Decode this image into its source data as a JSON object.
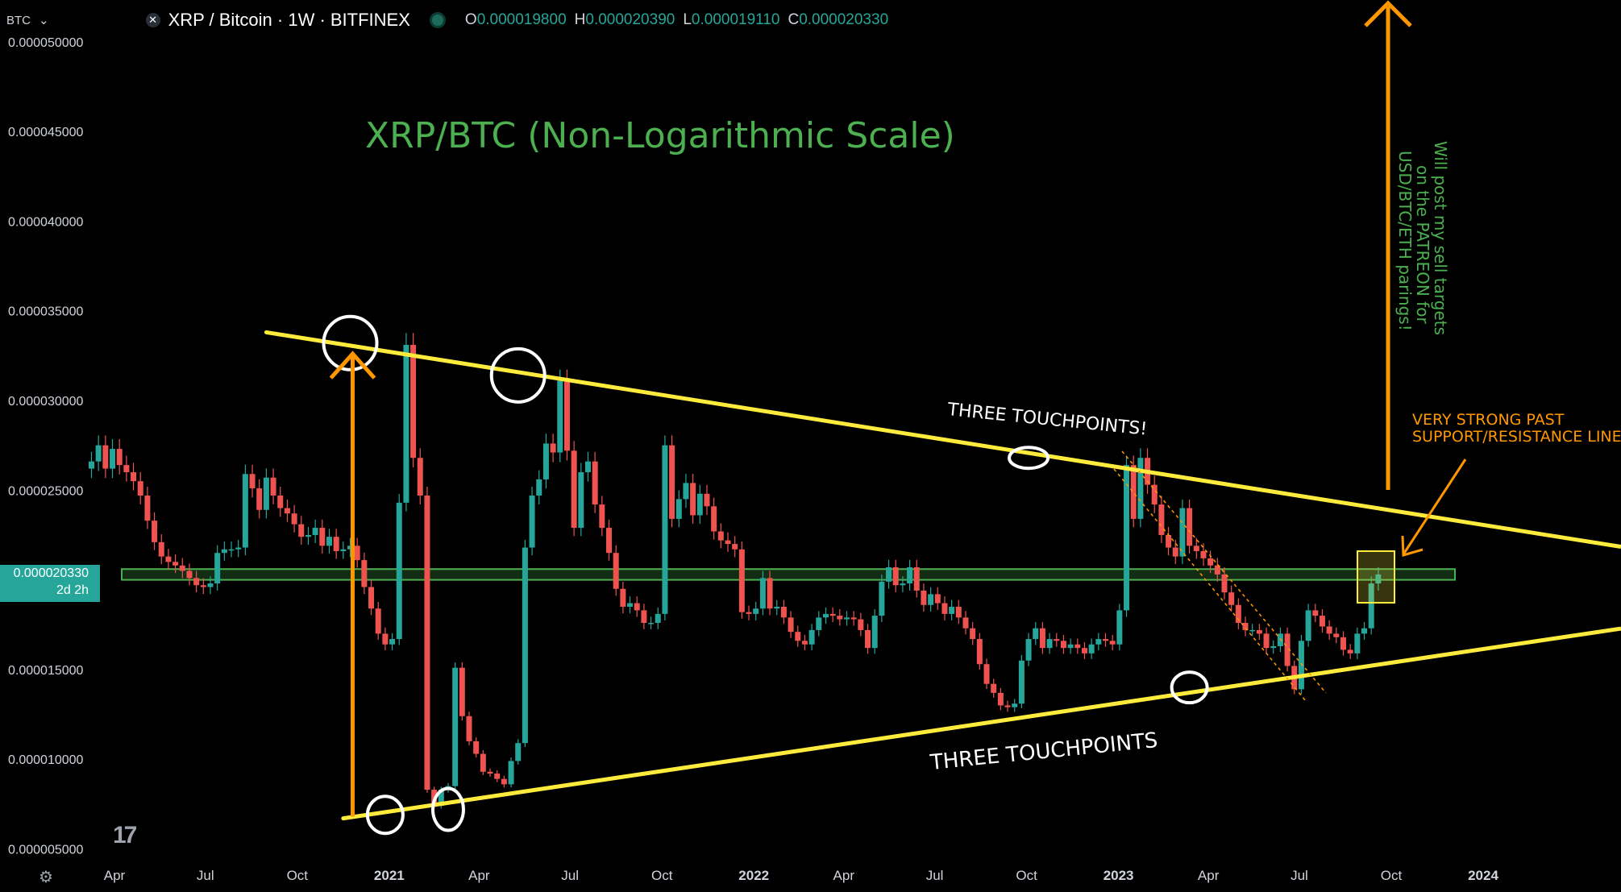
{
  "header": {
    "unit": "BTC",
    "symbol_title": "XRP / Bitcoin · 1W · BITFINEX",
    "ohlc": [
      {
        "k": "O",
        "v": "0.000019800"
      },
      {
        "k": "H",
        "v": "0.000020390"
      },
      {
        "k": "L",
        "v": "0.000019110"
      },
      {
        "k": "C",
        "v": "0.000020330"
      }
    ]
  },
  "price_tag": {
    "value": "0.000020330",
    "countdown": "2d 2h"
  },
  "annotations": {
    "title": "XRP/BTC (Non-Logarithmic Scale)",
    "upper_label": "THREE TOUCHPOINTS!",
    "lower_label": "THREE TOUCHPOINTS",
    "resistance_label_1": "VERY STRONG PAST",
    "resistance_label_2": "SUPPORT/RESISTANCE LINE!",
    "patreon_lines": [
      "Will post my sell targets",
      "on the PATREON for",
      "USD/BTC/ETH parings!"
    ]
  },
  "colors": {
    "bull": "#26a69a",
    "bear": "#ef5350",
    "trendline": "#ffeb3b",
    "arrow": "#ff9800",
    "zone": "#4caf50",
    "annotation_green": "#4caf50",
    "annotation_orange": "#ff9800"
  },
  "chart_data": {
    "type": "candlestick",
    "title": "XRP/BTC (Non-Logarithmic Scale)",
    "y_axis": {
      "ticks": [
        5e-06,
        1e-05,
        1.5e-05,
        2e-05,
        2.5e-05,
        3e-05,
        3.5e-05,
        4e-05,
        4.5e-05,
        5e-05
      ],
      "tick_labels": [
        "0.000005000",
        "0.000010000",
        "0.000015000",
        "",
        "0.000025000",
        "0.000030000",
        "0.000035000",
        "0.000040000",
        "0.000045000",
        "0.000050000"
      ],
      "range": [
        4.8e-06,
        5.11e-05
      ]
    },
    "x_axis": {
      "tick_labels": [
        "Apr",
        "Jul",
        "Oct",
        "2021",
        "Apr",
        "Jul",
        "Oct",
        "2022",
        "Apr",
        "Jul",
        "Oct",
        "2023",
        "Apr",
        "Jul",
        "Oct",
        "2024"
      ],
      "tick_dates": [
        "2020-04-01",
        "2020-07-01",
        "2020-10-01",
        "2021-01-01",
        "2021-04-01",
        "2021-07-01",
        "2021-10-01",
        "2022-01-01",
        "2022-04-01",
        "2022-07-01",
        "2022-10-01",
        "2023-01-01",
        "2023-04-01",
        "2023-07-01",
        "2023-10-01",
        "2024-01-01"
      ]
    },
    "first_week": "2020-03-09",
    "closes": [
      2.66e-05,
      2.75e-05,
      2.62e-05,
      2.73e-05,
      2.64e-05,
      2.6e-05,
      2.55e-05,
      2.47e-05,
      2.33e-05,
      2.21e-05,
      2.13e-05,
      2.1e-05,
      2.08e-05,
      2.05e-05,
      2.01e-05,
      1.97e-05,
      1.96e-05,
      1.98e-05,
      2.15e-05,
      2.17e-05,
      2.17e-05,
      2.18e-05,
      2.59e-05,
      2.51e-05,
      2.39e-05,
      2.57e-05,
      2.47e-05,
      2.4e-05,
      2.37e-05,
      2.31e-05,
      2.24e-05,
      2.25e-05,
      2.29e-05,
      2.19e-05,
      2.24e-05,
      2.16e-05,
      2.17e-05,
      2.19e-05,
      2.11e-05,
      1.96e-05,
      1.84e-05,
      1.7e-05,
      1.64e-05,
      1.67e-05,
      2.43e-05,
      3.31e-05,
      2.68e-05,
      2.47e-05,
      8.3e-06,
      7.4e-06,
      8.3e-06,
      8.5e-06,
      1.51e-05,
      1.24e-05,
      1.1e-05,
      1.03e-05,
      9.3e-06,
      9.2e-06,
      8.9e-06,
      8.6e-06,
      9.9e-06,
      1.09e-05,
      2.18e-05,
      2.47e-05,
      2.56e-05,
      2.76e-05,
      2.71e-05,
      3.11e-05,
      2.72e-05,
      2.29e-05,
      2.6e-05,
      2.66e-05,
      2.42e-05,
      2.29e-05,
      2.15e-05,
      1.95e-05,
      1.85e-05,
      1.87e-05,
      1.83e-05,
      1.76e-05,
      1.76e-05,
      1.81e-05,
      2.75e-05,
      2.34e-05,
      2.45e-05,
      2.54e-05,
      2.36e-05,
      2.48e-05,
      2.41e-05,
      2.27e-05,
      2.22e-05,
      2.2e-05,
      2.17e-05,
      1.82e-05,
      1.81e-05,
      1.84e-05,
      2.01e-05,
      1.84e-05,
      1.85e-05,
      1.79e-05,
      1.71e-05,
      1.66e-05,
      1.64e-05,
      1.72e-05,
      1.79e-05,
      1.81e-05,
      1.8e-05,
      1.78e-05,
      1.79e-05,
      1.78e-05,
      1.72e-05,
      1.62e-05,
      1.8e-05,
      1.99e-05,
      2.07e-05,
      1.97e-05,
      1.98e-05,
      2.07e-05,
      1.94e-05,
      1.86e-05,
      1.92e-05,
      1.87e-05,
      1.81e-05,
      1.85e-05,
      1.79e-05,
      1.73e-05,
      1.67e-05,
      1.53e-05,
      1.42e-05,
      1.37e-05,
      1.3e-05,
      1.29e-05,
      1.31e-05,
      1.55e-05,
      1.67e-05,
      1.73e-05,
      1.62e-05,
      1.67e-05,
      1.66e-05,
      1.62e-05,
      1.64e-05,
      1.62e-05,
      1.59e-05,
      1.64e-05,
      1.67e-05,
      1.66e-05,
      1.64e-05,
      1.83e-05,
      2.64e-05,
      2.34e-05,
      2.68e-05,
      2.53e-05,
      2.42e-05,
      2.25e-05,
      2.18e-05,
      2.13e-05,
      2.4e-05,
      2.19e-05,
      2.16e-05,
      2.12e-05,
      2.08e-05,
      2.03e-05,
      1.93e-05,
      1.86e-05,
      1.76e-05,
      1.72e-05,
      1.72e-05,
      1.7e-05,
      1.62e-05,
      1.63e-05,
      1.7e-05,
      1.52e-05,
      1.39e-05,
      1.66e-05,
      1.83e-05,
      1.8e-05,
      1.74e-05,
      1.7e-05,
      1.68e-05,
      1.61e-05,
      1.59e-05,
      1.7e-05,
      1.73e-05,
      1.98e-05,
      2.03e-05
    ],
    "current_close": 2.033e-05,
    "trendlines": [
      {
        "name": "upper",
        "from": [
          "2020-08-31",
          3.38e-05
        ],
        "to": [
          "2024-01-08",
          2.3e-05
        ]
      },
      {
        "name": "lower",
        "from": [
          "2020-11-16",
          6.7e-06
        ],
        "to": [
          "2024-01-08",
          1.62e-05
        ]
      }
    ],
    "support_zone": [
      2e-05,
      2.06e-05
    ],
    "touchpoints_upper": [
      "2020-11-23",
      "2021-05-10",
      "2022-10-03"
    ],
    "touchpoints_lower": [
      "2020-12-28",
      "2021-03-01",
      "2023-03-13"
    ]
  }
}
